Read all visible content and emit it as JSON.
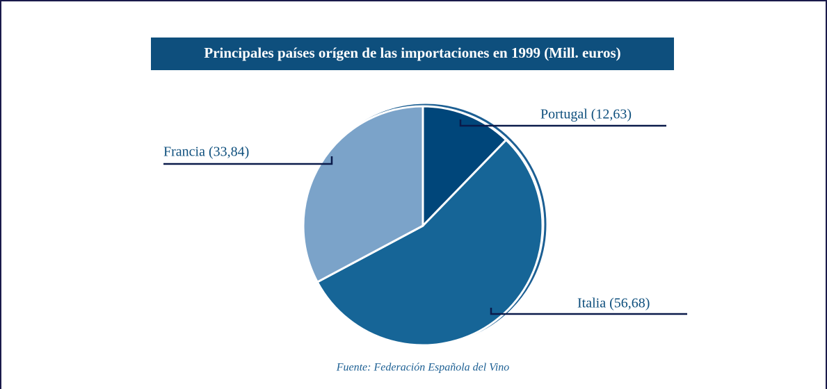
{
  "chart_data": {
    "type": "pie",
    "title": "Principales países orígen de las importaciones en 1999 (Mill. euros)",
    "categories": [
      "Portugal (12,63)",
      "Italia (56,68)",
      "Francia (33,84)"
    ],
    "values": [
      12.63,
      56.68,
      33.84
    ],
    "colors": [
      "#00467a",
      "#166597",
      "#7ba3c9"
    ],
    "source": "Fuente: Federación Española del Vino"
  }
}
